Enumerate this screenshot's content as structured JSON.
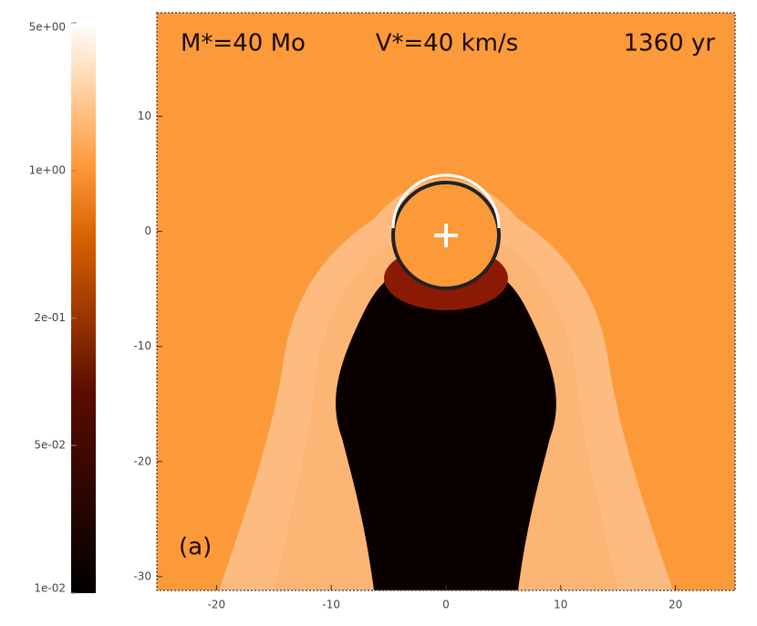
{
  "chart_data": {
    "type": "image",
    "annotations": [
      "M*=40 Mo",
      "V*=40 km/s",
      "1360 yr",
      "(a)"
    ],
    "xlim": [
      -25.2,
      25.2
    ],
    "xticks": [
      -20,
      -10,
      0,
      10,
      20
    ],
    "ylim": [
      -31.2,
      19
    ],
    "yticks": [
      10,
      0,
      -10,
      -20,
      -30
    ],
    "colorbar": {
      "log": true,
      "lim": [
        0.01,
        5
      ],
      "ticks": [
        {
          "value": 5,
          "label": "5e+00"
        },
        {
          "value": 1,
          "label": "1e+00"
        },
        {
          "value": 0.2,
          "label": "2e-01"
        },
        {
          "value": 0.05,
          "label": "5e-02"
        },
        {
          "value": 0.01,
          "label": "1e-02"
        }
      ]
    }
  }
}
